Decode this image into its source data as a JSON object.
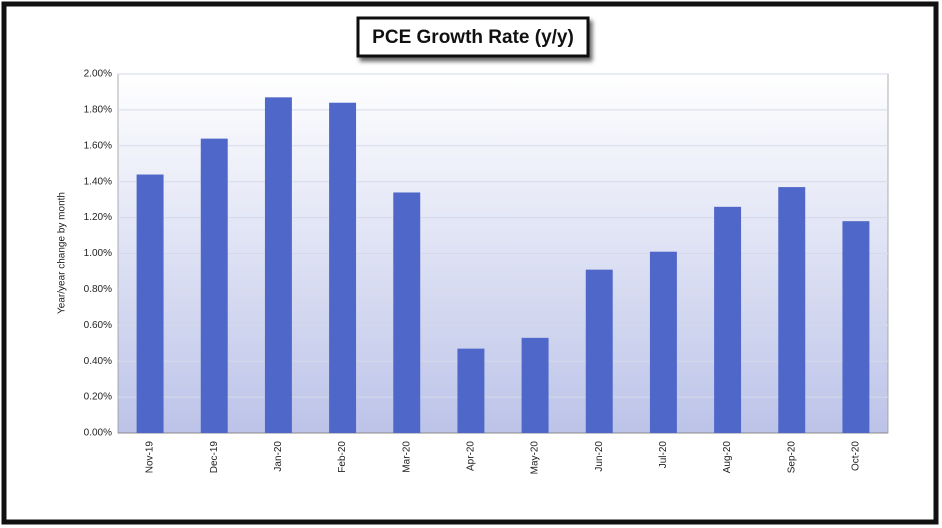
{
  "chart_data": {
    "type": "bar",
    "title": "PCE Growth Rate (y/y)",
    "y_label": "Year/year change by month",
    "categories": [
      "Nov-19",
      "Dec-19",
      "Jan-20",
      "Feb-20",
      "Mar-20",
      "Apr-20",
      "May-20",
      "Jun-20",
      "Jul-20",
      "Aug-20",
      "Sep-20",
      "Oct-20"
    ],
    "values": [
      1.44,
      1.64,
      1.87,
      1.84,
      1.34,
      0.47,
      0.53,
      0.91,
      1.01,
      1.26,
      1.37,
      1.18
    ],
    "color": "#4f67c9",
    "ylim": [
      0,
      2
    ],
    "yticks": [
      {
        "value": 0,
        "label": "0.00%"
      },
      {
        "value": 0.2,
        "label": "0.20%"
      },
      {
        "value": 0.4,
        "label": "0.40%"
      },
      {
        "value": 0.6,
        "label": "0.60%"
      },
      {
        "value": 0.8,
        "label": "0.80%"
      },
      {
        "value": 1,
        "label": "1.00%"
      },
      {
        "value": 1.2,
        "label": "1.20%"
      },
      {
        "value": 1.4,
        "label": "1.40%"
      },
      {
        "value": 1.6,
        "label": "1.60%"
      },
      {
        "value": 1.8,
        "label": "1.80%"
      },
      {
        "value": 2,
        "label": "2.00%"
      }
    ],
    "grid": true
  }
}
